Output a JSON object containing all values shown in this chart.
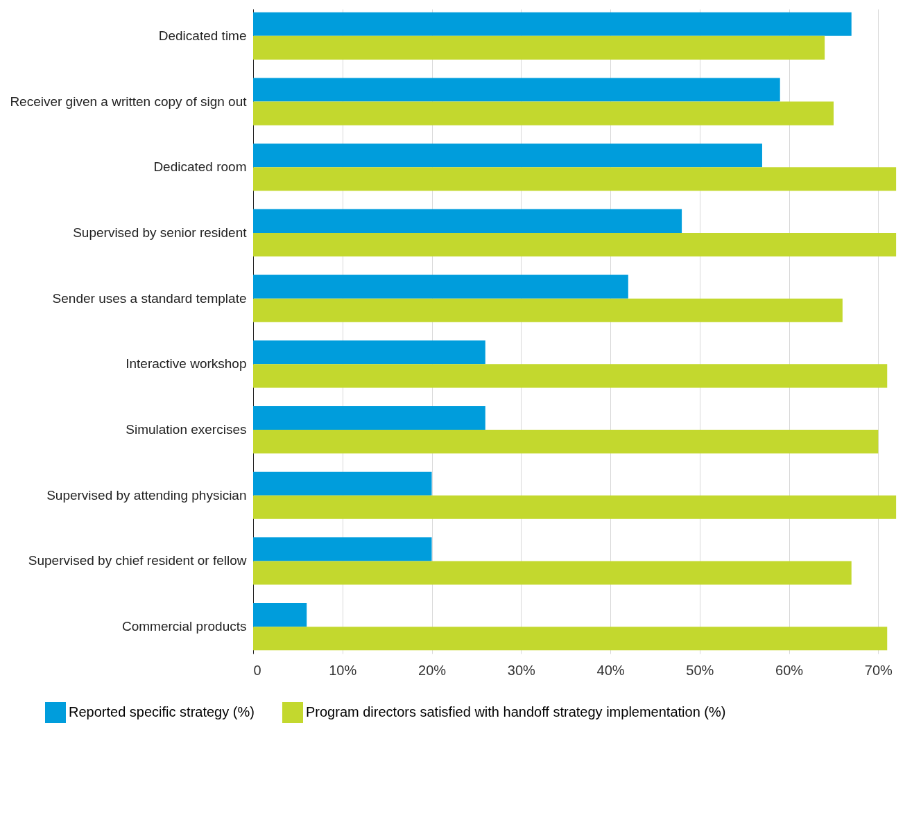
{
  "chart_data": {
    "type": "bar",
    "orientation": "horizontal",
    "categories": [
      "Dedicated time",
      "Receiver given a written copy of sign out",
      "Dedicated room",
      "Supervised by senior resident",
      "Sender uses a standard template",
      "Interactive workshop",
      "Simulation exercises",
      "Supervised by attending physician",
      "Supervised by chief resident or fellow",
      "Commercial products"
    ],
    "series": [
      {
        "name": "Reported specific strategy (%)",
        "color": "#009ddc",
        "values": [
          67,
          59,
          57,
          48,
          42,
          26,
          26,
          20,
          20,
          6
        ]
      },
      {
        "name": "Program directors satisfied with handoff strategy implementation (%)",
        "color": "#c3d82e",
        "values": [
          64,
          65,
          72,
          72,
          66,
          71,
          70,
          72,
          67,
          71
        ]
      }
    ],
    "xlim": [
      0,
      73
    ],
    "xticks": [
      0,
      {
        "value": 10,
        "label": "10%"
      },
      {
        "value": 20,
        "label": "20%"
      },
      {
        "value": 30,
        "label": "30%"
      },
      {
        "value": 40,
        "label": "40%"
      },
      {
        "value": 50,
        "label": "50%"
      },
      {
        "value": 60,
        "label": "60%"
      },
      {
        "value": 70,
        "label": "70%"
      }
    ],
    "grid": "x",
    "legend": "bottom"
  }
}
